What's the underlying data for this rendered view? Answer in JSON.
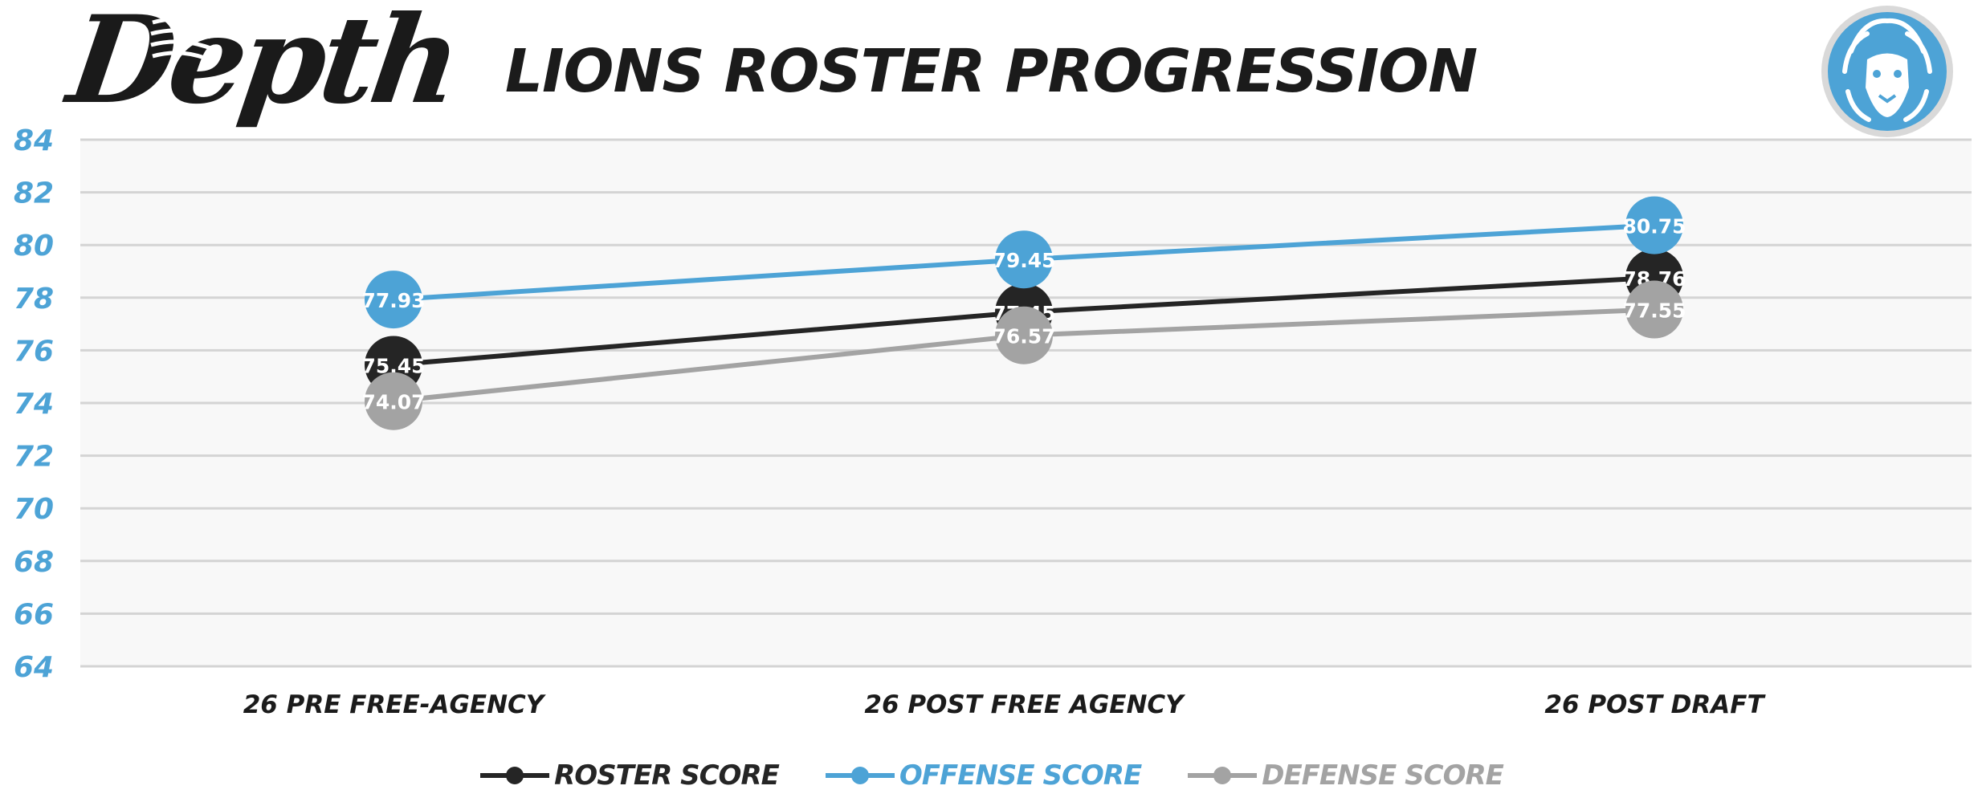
{
  "header": {
    "logo_text": "Depth",
    "title": "LIONS ROSTER PROGRESSION",
    "badge_icon": "lion-head-icon"
  },
  "colors": {
    "roster": "#252525",
    "offense": "#4da3d6",
    "defense": "#a3a3a3",
    "axis_labels": "#4da3d6",
    "plot_bg": "#f8f8f8",
    "grid": "#d4d4d4"
  },
  "chart_data": {
    "type": "line",
    "title": "LIONS ROSTER PROGRESSION",
    "xlabel": "",
    "ylabel": "",
    "categories": [
      "26 PRE FREE-AGENCY",
      "26 POST FREE AGENCY",
      "26 POST DRAFT"
    ],
    "ylim": [
      64,
      84
    ],
    "yticks": [
      64,
      66,
      68,
      70,
      72,
      74,
      76,
      78,
      80,
      82,
      84
    ],
    "grid": true,
    "legend_position": "bottom",
    "data_labels": true,
    "series": [
      {
        "name": "ROSTER SCORE",
        "key": "roster",
        "values": [
          75.45,
          77.45,
          78.76
        ],
        "labels": [
          "75.45",
          "77.45",
          "78.76"
        ]
      },
      {
        "name": "OFFENSE SCORE",
        "key": "offense",
        "values": [
          77.93,
          79.45,
          80.75
        ],
        "labels": [
          "77.93",
          "79.45",
          "80.75"
        ]
      },
      {
        "name": "DEFENSE SCORE",
        "key": "defense",
        "values": [
          74.07,
          76.57,
          77.55
        ],
        "labels": [
          "74.07",
          "76.57",
          "77.55"
        ]
      }
    ]
  }
}
